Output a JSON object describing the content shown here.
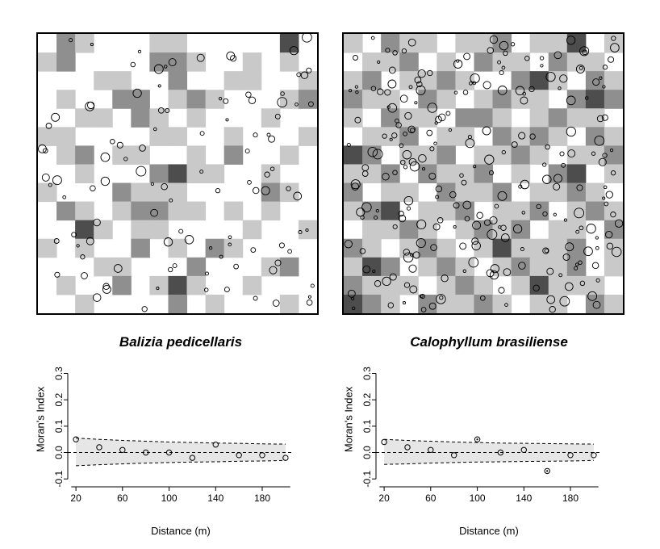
{
  "colors": {
    "background": "#ffffff",
    "envelope_fill": "#e6e6e6",
    "line": "#000000"
  },
  "maps": {
    "shade_colors": [
      "#ffffff",
      "#c9c9c9",
      "#8f8f8f",
      "#4d4d4d"
    ],
    "panels": [
      {
        "name": "balizia-habitat-map",
        "grid": [
          "021000110000030",
          "120000221001010",
          "000110020011001",
          "010022012100012",
          "001102101000100",
          "110000110010001",
          "012011001020010",
          "001000231100100",
          "100021110000210",
          "021012211010100",
          "003101100001001",
          "101002010210000",
          "000110002000120",
          "010020131001000",
          "001000020100010"
        ],
        "points": {
          "count": 105,
          "seed": 7,
          "r_min": 1.6,
          "r_max": 6.0
        }
      },
      {
        "name": "calophyllum-habitat-map",
        "grid": [
          "102110112011301",
          "011201021102110",
          "120112100231021",
          "211021012110232",
          "102110221012110",
          "011201102121021",
          "320112011210112",
          "112021120102301",
          "201102112011210",
          "123011201120121",
          "011210121201102",
          "210121013111201",
          "132012101211201",
          "211101210131110",
          "321021121011021"
        ],
        "points": {
          "count": 250,
          "seed": 13,
          "r_min": 1.6,
          "r_max": 6.0
        }
      }
    ]
  },
  "chart_data": [
    {
      "type": "scatter",
      "title": "Balizia pedicellaris",
      "xlabel": "Distance (m)",
      "ylabel": "Moran's Index",
      "xlim": [
        13,
        207
      ],
      "ylim": [
        -0.13,
        0.32
      ],
      "xticks": [
        20,
        60,
        100,
        140,
        180
      ],
      "yticks": [
        -0.1,
        0.0,
        0.1,
        0.2,
        0.3
      ],
      "x": [
        20,
        40,
        60,
        80,
        100,
        120,
        140,
        160,
        180,
        200
      ],
      "y": [
        0.05,
        0.02,
        0.01,
        0.0,
        0.0,
        -0.02,
        0.03,
        -0.01,
        -0.01,
        -0.02
      ],
      "significant": [
        false,
        false,
        false,
        false,
        false,
        false,
        false,
        false,
        false,
        false
      ],
      "zero": 0.0,
      "envelope": {
        "x": [
          20,
          40,
          60,
          80,
          100,
          120,
          140,
          160,
          180,
          200
        ],
        "upper": [
          0.055,
          0.05,
          0.046,
          0.043,
          0.04,
          0.038,
          0.036,
          0.035,
          0.033,
          0.032
        ],
        "lower": [
          -0.05,
          -0.046,
          -0.043,
          -0.04,
          -0.038,
          -0.036,
          -0.035,
          -0.033,
          -0.032,
          -0.03
        ]
      },
      "grid": false,
      "legend_position": "none"
    },
    {
      "type": "scatter",
      "title": "Calophyllum brasiliense",
      "xlabel": "Distance (m)",
      "ylabel": "Moran's Index",
      "xlim": [
        13,
        207
      ],
      "ylim": [
        -0.13,
        0.32
      ],
      "xticks": [
        20,
        60,
        100,
        140,
        180
      ],
      "yticks": [
        -0.1,
        0.0,
        0.1,
        0.2,
        0.3
      ],
      "x": [
        20,
        40,
        60,
        80,
        100,
        120,
        140,
        160,
        180,
        200
      ],
      "y": [
        0.04,
        0.02,
        0.01,
        -0.01,
        0.05,
        0.0,
        0.01,
        -0.07,
        -0.01,
        -0.01
      ],
      "significant": [
        false,
        false,
        false,
        false,
        true,
        false,
        false,
        true,
        false,
        false
      ],
      "zero": 0.0,
      "envelope": {
        "x": [
          20,
          40,
          60,
          80,
          100,
          120,
          140,
          160,
          180,
          200
        ],
        "upper": [
          0.05,
          0.046,
          0.043,
          0.04,
          0.038,
          0.036,
          0.035,
          0.034,
          0.033,
          0.032
        ],
        "lower": [
          -0.045,
          -0.043,
          -0.04,
          -0.038,
          -0.036,
          -0.035,
          -0.034,
          -0.033,
          -0.032,
          -0.03
        ]
      },
      "grid": false,
      "legend_position": "none"
    }
  ]
}
